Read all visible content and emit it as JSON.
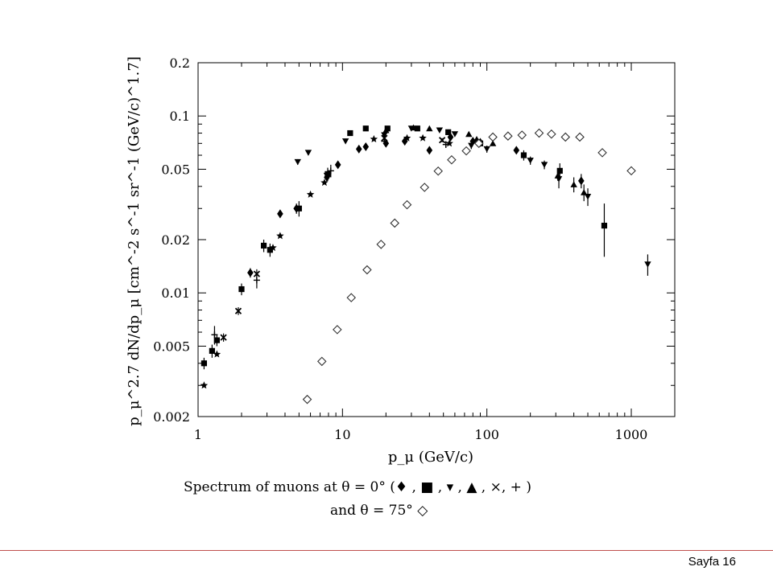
{
  "chart_data": {
    "type": "scatter",
    "xscale": "log",
    "yscale": "log",
    "xlim": [
      1,
      2000
    ],
    "ylim": [
      0.002,
      0.2
    ],
    "xticks": [
      1,
      10,
      100,
      1000
    ],
    "xtick_labels": [
      "1",
      "10",
      "100",
      "1000"
    ],
    "yticks": [
      0.002,
      0.005,
      0.01,
      0.02,
      0.05,
      0.1,
      0.2
    ],
    "ytick_labels": [
      "0.002",
      "0.005",
      "0.01",
      "0.02",
      "0.05",
      "0.1",
      "0.2"
    ],
    "xlabel": "p_μ (GeV/c)",
    "ylabel": "p_μ^2.7 dN/dp_μ [cm^-2 s^-1 sr^-1 (GeV/c)^1.7]",
    "caption_line1": "Spectrum of muons at θ = 0° (♦ , ■ , ▾ , ▲ , ×, + )",
    "caption_line2": "and θ = 75° ◇",
    "series": [
      {
        "marker": "diamond",
        "x": [
          2.3,
          3.7,
          4.8,
          7.8,
          9.3,
          13,
          14.5,
          20,
          27,
          40,
          56,
          80,
          90,
          160,
          450
        ],
        "y": [
          0.013,
          0.028,
          0.03,
          0.045,
          0.053,
          0.065,
          0.067,
          0.07,
          0.072,
          0.064,
          0.076,
          0.072,
          0.071,
          0.064,
          0.043
        ],
        "yerr": [
          0.0008,
          0.0015,
          0.002,
          0.002,
          0.002,
          0.002,
          0.002,
          0.002,
          0.002,
          0.003,
          0.002,
          0.002,
          0.002,
          0.003,
          0.004
        ]
      },
      {
        "marker": "square",
        "x": [
          1.1,
          1.25,
          1.35,
          2.0,
          2.85,
          3.15,
          5.0,
          7.9,
          11.3,
          14.5,
          20.5,
          33,
          54,
          90,
          180,
          320,
          650
        ],
        "y": [
          0.004,
          0.0047,
          0.0054,
          0.0105,
          0.0185,
          0.0175,
          0.03,
          0.047,
          0.08,
          0.085,
          0.085,
          0.085,
          0.081,
          0.07,
          0.06,
          0.049,
          0.024
        ],
        "yerr": [
          0.0003,
          0.0004,
          0.0004,
          0.0008,
          0.0015,
          0.0015,
          0.003,
          0.004,
          0.002,
          0.002,
          0.002,
          0.002,
          0.002,
          0.003,
          0.004,
          0.005,
          0.008
        ]
      },
      {
        "marker": "triangle-down",
        "x": [
          4.9,
          5.8,
          7.8,
          10.5,
          19.5,
          30,
          47,
          60,
          78,
          100,
          200,
          250,
          315,
          500,
          1300
        ],
        "y": [
          0.055,
          0.062,
          0.046,
          0.072,
          0.078,
          0.085,
          0.083,
          0.079,
          0.068,
          0.065,
          0.056,
          0.053,
          0.044,
          0.035,
          0.0145
        ],
        "yerr": [
          0.002,
          0.002,
          0.002,
          0.002,
          0.002,
          0.002,
          0.002,
          0.002,
          0.003,
          0.003,
          0.003,
          0.003,
          0.005,
          0.004,
          0.002
        ]
      },
      {
        "marker": "triangle-up",
        "x": [
          20,
          31,
          40,
          75,
          85,
          110,
          310,
          400,
          470
        ],
        "y": [
          0.083,
          0.086,
          0.085,
          0.079,
          0.074,
          0.07,
          0.046,
          0.041,
          0.037
        ],
        "yerr": [
          0.002,
          0.002,
          0.002,
          0.002,
          0.002,
          0.002,
          0.003,
          0.004,
          0.004
        ]
      },
      {
        "marker": "cross",
        "x": [
          1.5,
          1.9,
          2.55,
          19.5,
          49
        ],
        "y": [
          0.0056,
          0.0079,
          0.0128,
          0.075,
          0.073
        ],
        "yerr": [
          0.0003,
          0.0004,
          0.0008,
          0.002,
          0.002
        ]
      },
      {
        "marker": "plus",
        "x": [
          1.3,
          2.55,
          8.3,
          19.5,
          52
        ],
        "y": [
          0.0058,
          0.0118,
          0.049,
          0.072,
          0.069
        ],
        "yerr": [
          0.0007,
          0.0012,
          0.004,
          0.003,
          0.003
        ]
      },
      {
        "marker": "star",
        "x": [
          1.1,
          1.35,
          3.3,
          3.7,
          6.0,
          7.5,
          16.5,
          28,
          36,
          55
        ],
        "y": [
          0.003,
          0.0045,
          0.018,
          0.021,
          0.036,
          0.042,
          0.074,
          0.075,
          0.075,
          0.07
        ]
      },
      {
        "marker": "open-diamond",
        "x": [
          5.7,
          7.2,
          9.2,
          11.5,
          14.8,
          18.5,
          23,
          28,
          37,
          46,
          57,
          72,
          88,
          110,
          140,
          175,
          230,
          280,
          350,
          440,
          630,
          1000
        ],
        "y": [
          0.0025,
          0.0041,
          0.0062,
          0.0094,
          0.0135,
          0.0188,
          0.0248,
          0.0315,
          0.0395,
          0.0488,
          0.0565,
          0.0635,
          0.07,
          0.076,
          0.077,
          0.078,
          0.08,
          0.079,
          0.076,
          0.076,
          0.062,
          0.049
        ]
      }
    ]
  },
  "footer": {
    "page_label": "Sayfa 16"
  }
}
